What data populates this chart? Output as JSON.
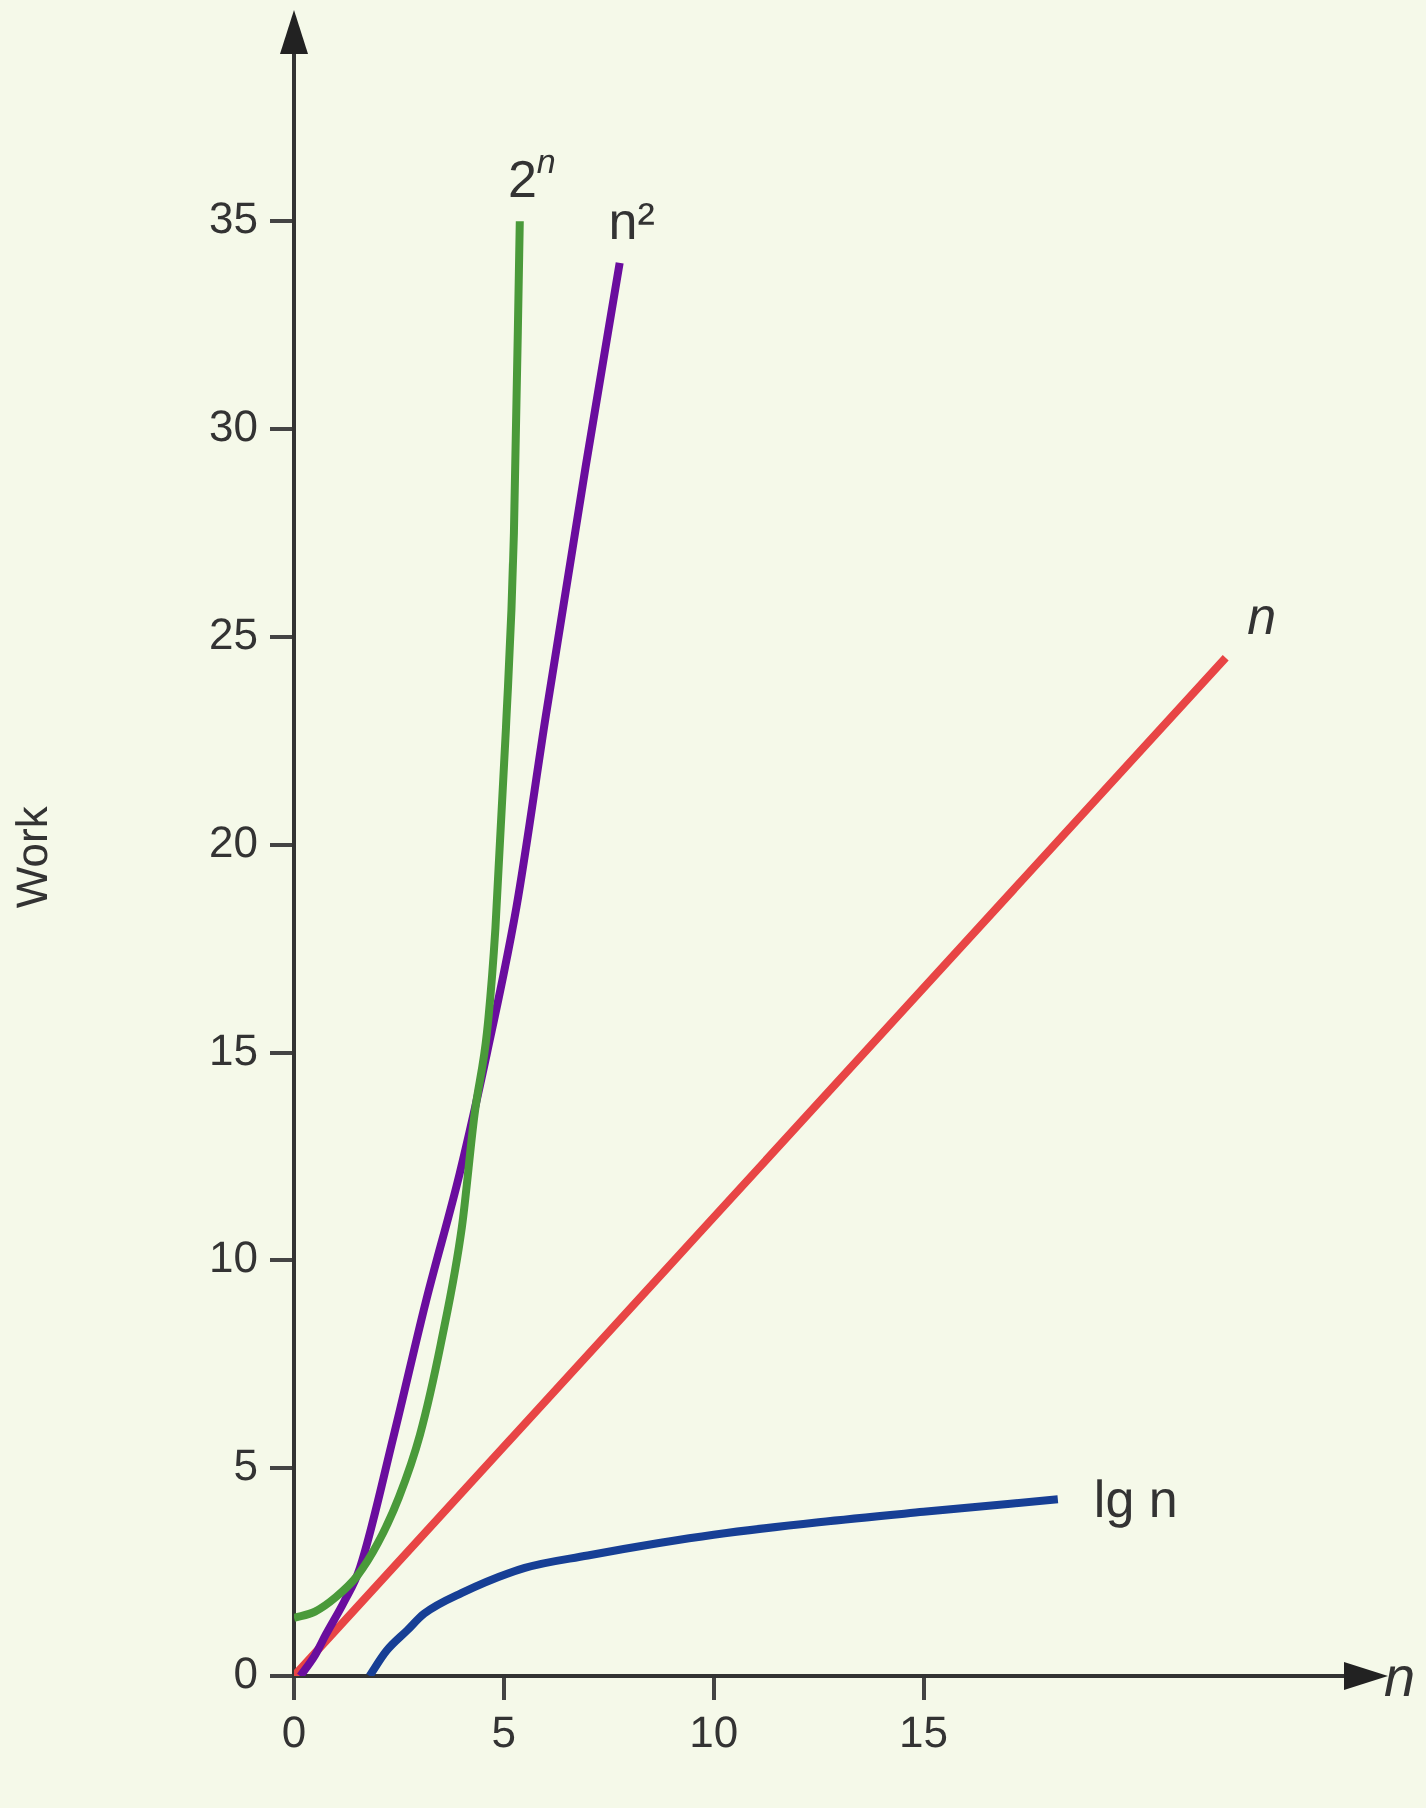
{
  "chart_data": {
    "type": "line",
    "xlabel": "n",
    "ylabel": "Work",
    "xlim": [
      0,
      25.4
    ],
    "ylim": [
      0,
      39.4
    ],
    "xticks": [
      0,
      5,
      10,
      15
    ],
    "yticks": [
      0,
      5,
      10,
      15,
      20,
      25,
      30,
      35
    ],
    "grid": false,
    "legend": false,
    "marker": "none",
    "series": [
      {
        "name": "2$^{n}$",
        "color": "#4a9a3a",
        "x": [
          0,
          0.5,
          1,
          1.5,
          2,
          2.5,
          3,
          3.5,
          4,
          4.3,
          4.6,
          4.8,
          5.05,
          5.24,
          5.38
        ],
        "values": [
          1.4,
          1.55,
          1.9,
          2.4,
          3.2,
          4.3,
          5.8,
          8,
          10.8,
          13.5,
          15.5,
          18,
          22.8,
          27.5,
          35
        ]
      },
      {
        "name": "n²",
        "color": "#6a0d9e",
        "x": [
          0.15,
          0.5,
          0.76,
          1.2,
          1.57,
          2.38,
          3.14,
          3.95,
          4.6,
          5.3,
          6,
          6.95,
          7.76
        ],
        "values": [
          0,
          0.5,
          1,
          1.8,
          2.6,
          5.8,
          9,
          12.1,
          15,
          18.5,
          23.1,
          29.1,
          34
        ]
      },
      {
        "name": "n",
        "color": "#e84545",
        "x": [
          0,
          22.2
        ],
        "values": [
          0,
          24.5
        ]
      },
      {
        "name": "lg n",
        "color": "#173f95",
        "x": [
          1.8,
          2.2,
          2.7,
          3.1,
          4,
          5.5,
          7,
          8.7,
          10,
          12.5,
          15,
          18.2
        ],
        "values": [
          0,
          0.6,
          1.1,
          1.5,
          2,
          2.6,
          2.9,
          3.2,
          3.4,
          3.7,
          3.95,
          4.25
        ]
      }
    ]
  }
}
